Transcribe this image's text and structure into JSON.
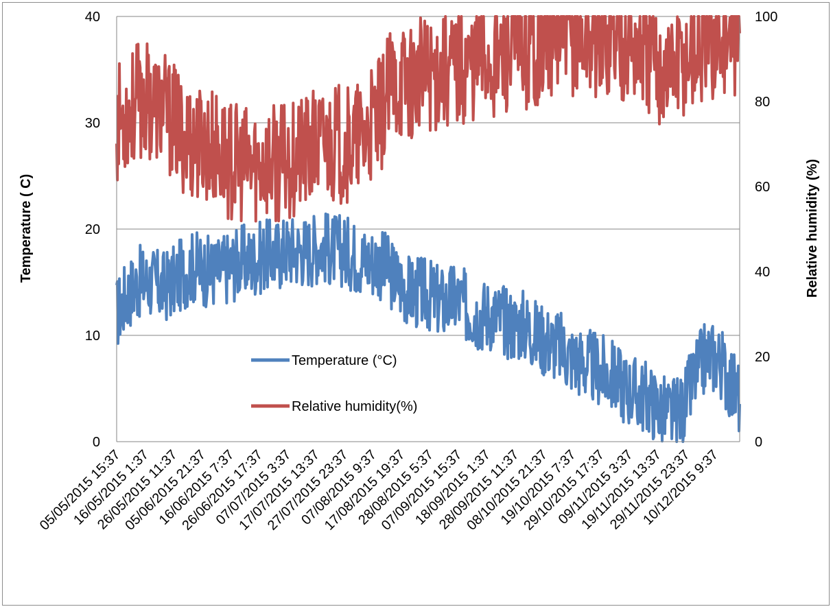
{
  "chart_data": {
    "type": "line",
    "title": "",
    "ylabel_left": "Temperature ( C)",
    "ylabel_right": "Relative humidity (%)",
    "y_left_range": [
      0,
      40
    ],
    "y_left_ticks": [
      "0",
      "10",
      "20",
      "30",
      "40"
    ],
    "y_right_range": [
      0,
      100
    ],
    "y_right_ticks": [
      "0",
      "20",
      "40",
      "60",
      "80",
      "100"
    ],
    "x_tick_labels": [
      "05/05/2015 15:37",
      "16/05/2015 1:37",
      "26/05/2015 11:37",
      "05/06/2015 21:37",
      "16/06/2015 7:37",
      "26/06/2015 17:37",
      "07/07/2015 3:37",
      "17/07/2015 13:37",
      "27/07/2015 23:37",
      "07/08/2015 9:37",
      "17/08/2015 19:37",
      "28/08/2015 5:37",
      "07/09/2015 15:37",
      "18/09/2015 1:37",
      "28/09/2015 11:37",
      "08/10/2015 21:37",
      "19/10/2015 7:37",
      "29/10/2015 17:37",
      "09/11/2015 3:37",
      "19/11/2015 13:37",
      "29/11/2015 23:37",
      "10/12/2015 9:37"
    ],
    "grid": "horizontal",
    "legend": "center-left",
    "series": [
      {
        "name": "Temperature (°C)",
        "axis": "left",
        "color": "#4f81bd",
        "x_labels_ref": "x_tick_labels",
        "values": [
          12,
          14,
          15,
          15,
          14.5,
          15,
          16,
          16.5,
          16,
          16,
          16.5,
          17,
          17,
          17.5,
          17.5,
          18,
          18,
          18,
          18.5,
          18,
          18,
          17.5,
          17,
          17,
          16,
          15,
          14,
          14,
          13.5,
          13,
          13.5,
          12.5,
          12,
          12,
          11.5,
          11,
          11,
          10,
          9.5,
          9,
          8,
          7.5,
          7,
          6.5,
          6,
          5,
          4.5,
          4,
          3,
          2.5,
          3,
          6,
          8,
          8,
          6,
          4
        ]
      },
      {
        "name": "Relative humidity(%)",
        "axis": "right",
        "color": "#c0504d",
        "x_labels_ref": "x_tick_labels",
        "values": [
          75,
          78,
          80,
          80,
          78,
          75,
          72,
          70,
          70,
          68,
          66,
          65,
          65,
          66,
          65,
          66,
          67,
          68,
          70,
          70,
          70,
          70,
          72,
          75,
          82,
          85,
          85,
          86,
          87,
          88,
          88,
          89,
          90,
          90,
          90,
          91,
          92,
          93,
          94,
          95,
          95,
          95,
          95,
          95,
          95,
          94,
          93,
          90,
          88,
          88,
          90,
          92,
          93,
          94,
          95,
          95
        ]
      }
    ]
  }
}
